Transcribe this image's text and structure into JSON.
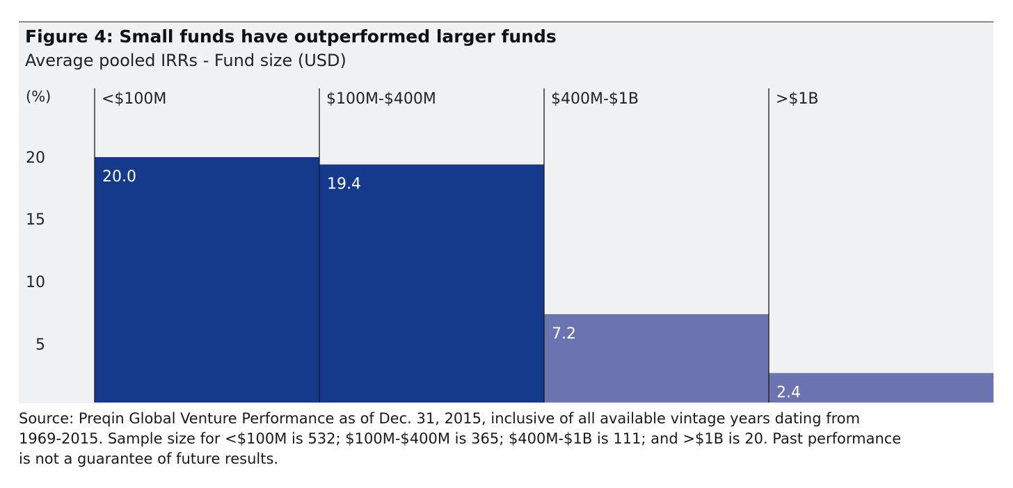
{
  "chart_data": {
    "type": "bar",
    "title": "Figure 4: Small funds have outperformed larger funds",
    "subtitle": "Average pooled IRRs - Fund size (USD)",
    "ylabel": "(%)",
    "xlabel": "",
    "ylim": [
      0,
      20
    ],
    "yticks": [
      "20",
      "15",
      "10",
      "5"
    ],
    "categories": [
      "<$100M",
      "$100M-$400M",
      "$400M-$1B",
      ">$1B"
    ],
    "values": [
      20.0,
      19.4,
      7.2,
      2.4
    ],
    "value_labels": [
      "20.0",
      "19.4",
      "7.2",
      "2.4"
    ],
    "colors": [
      "#15398b",
      "#15398b",
      "#6b73b0",
      "#6b73b0"
    ],
    "label_color": "#ffffff",
    "background": "#f0f1f3",
    "grid": false,
    "legend": "none"
  },
  "footnote": {
    "line1": "Source: Preqin Global Venture Performance as of Dec. 31, 2015, inclusive of all available vintage years dating from",
    "line2": "1969-2015. Sample size for <$100M is 532; $100M-$400M is 365; $400M-$1B is 111; and >$1B is 20. Past performance",
    "line3": "is not a guarantee of future results."
  }
}
